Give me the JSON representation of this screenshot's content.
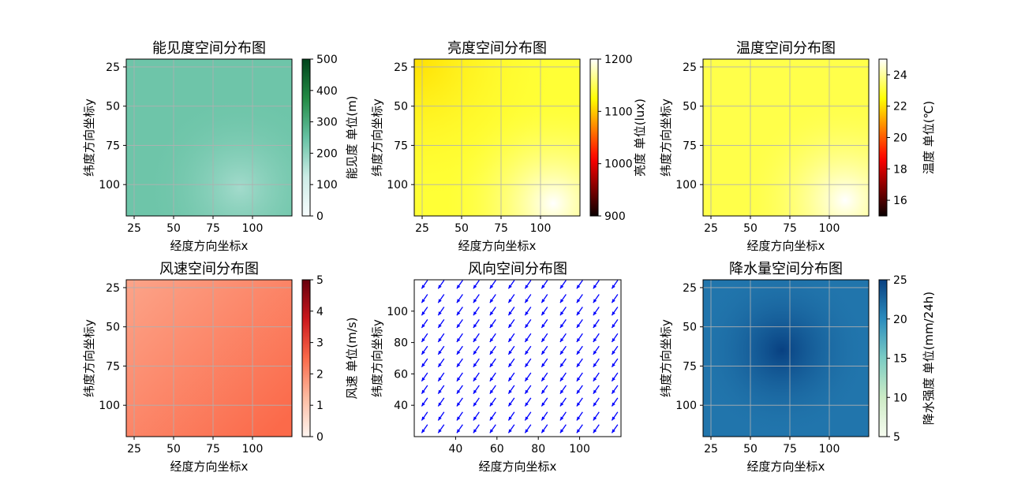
{
  "chart_data": [
    {
      "type": "heatmap",
      "title": "能见度空间分布图",
      "xlabel": "经度方向坐标x",
      "ylabel": "纬度方向坐标y",
      "x_range": [
        20,
        125
      ],
      "y_range": [
        20,
        120
      ],
      "x_ticks": [
        25,
        50,
        75,
        100
      ],
      "y_ticks": [
        25,
        50,
        75,
        100
      ],
      "y_inverted": true,
      "grid": true,
      "field": {
        "base": 240,
        "hotspot": {
          "x": 92,
          "y": 102,
          "value": 175,
          "radius": 60
        }
      },
      "colorbar": {
        "label": "能见度 单位(m)",
        "min": 0,
        "max": 500,
        "ticks": [
          0,
          100,
          200,
          300,
          400,
          500
        ],
        "colormap": "BuGn"
      }
    },
    {
      "type": "heatmap",
      "title": "亮度空间分布图",
      "xlabel": "经度方向坐标x",
      "ylabel": "纬度方向坐标y",
      "x_range": [
        20,
        125
      ],
      "y_range": [
        20,
        120
      ],
      "x_ticks": [
        25,
        50,
        75,
        100
      ],
      "y_ticks": [
        25,
        50,
        75,
        100
      ],
      "y_inverted": true,
      "grid": true,
      "field": {
        "base": 1140,
        "corner_low": {
          "x": 20,
          "y": 20,
          "value": 1110
        },
        "hotspot": {
          "x": 108,
          "y": 112,
          "value": 1200,
          "radius": 70
        }
      },
      "colorbar": {
        "label": "亮度 单位(lux)",
        "min": 900,
        "max": 1200,
        "ticks": [
          900,
          1000,
          1100,
          1200
        ],
        "colormap": "hot"
      }
    },
    {
      "type": "heatmap",
      "title": "温度空间分布图",
      "xlabel": "经度方向坐标x",
      "ylabel": "纬度方向坐标y",
      "x_range": [
        20,
        125
      ],
      "y_range": [
        20,
        120
      ],
      "x_ticks": [
        25,
        50,
        75,
        100
      ],
      "y_ticks": [
        25,
        50,
        75,
        100
      ],
      "y_inverted": true,
      "grid": true,
      "field": {
        "base": 23.2,
        "hotspot": {
          "x": 110,
          "y": 110,
          "value": 25,
          "radius": 65
        }
      },
      "colorbar": {
        "label": "温度 单位(℃)",
        "min": 15,
        "max": 25,
        "ticks": [
          16,
          18,
          20,
          22,
          24
        ],
        "colormap": "hot"
      }
    },
    {
      "type": "heatmap",
      "title": "风速空间分布图",
      "xlabel": "经度方向坐标x",
      "ylabel": "纬度方向坐标y",
      "x_range": [
        20,
        125
      ],
      "y_range": [
        20,
        120
      ],
      "x_ticks": [
        25,
        50,
        75,
        100
      ],
      "y_ticks": [
        25,
        50,
        75,
        100
      ],
      "y_inverted": true,
      "grid": true,
      "field": {
        "base": 1.6,
        "gradient_to": {
          "x": 115,
          "y": 115,
          "value": 2.5
        }
      },
      "colorbar": {
        "label": "风速 单位(m/s)",
        "min": 0,
        "max": 5,
        "ticks": [
          0,
          1,
          2,
          3,
          4,
          5
        ],
        "colormap": "Reds"
      }
    },
    {
      "type": "quiver",
      "title": "风向空间分布图",
      "xlabel": "经度方向坐标x",
      "ylabel": "纬度方向坐标y",
      "x_range": [
        20,
        120
      ],
      "y_range": [
        20,
        120
      ],
      "x_ticks": [
        40,
        60,
        80,
        100
      ],
      "y_ticks": [
        40,
        60,
        80,
        100
      ],
      "grid": false,
      "arrow_color": "#0000ff",
      "arrow_direction_deg": 235,
      "grid_x": [
        25,
        33,
        42,
        50,
        58,
        67,
        75,
        83,
        92,
        100,
        108,
        117
      ],
      "grid_y": [
        25,
        33,
        42,
        50,
        58,
        67,
        75,
        83,
        92,
        100,
        108,
        117
      ]
    },
    {
      "type": "heatmap",
      "title": "降水量空间分布图",
      "xlabel": "经度方向坐标x",
      "ylabel": "纬度方向坐标y",
      "x_range": [
        20,
        125
      ],
      "y_range": [
        20,
        120
      ],
      "x_ticks": [
        25,
        50,
        75,
        100
      ],
      "y_ticks": [
        25,
        50,
        75,
        100
      ],
      "y_inverted": true,
      "grid": true,
      "field": {
        "base": 21.5,
        "hotspot": {
          "x": 70,
          "y": 65,
          "value": 25,
          "radius": 55
        }
      },
      "colorbar": {
        "label": "降水强度 单位(mm/24h)",
        "min": 5,
        "max": 25,
        "ticks": [
          5,
          10,
          15,
          20,
          25
        ],
        "colormap": "GnBu"
      }
    }
  ]
}
